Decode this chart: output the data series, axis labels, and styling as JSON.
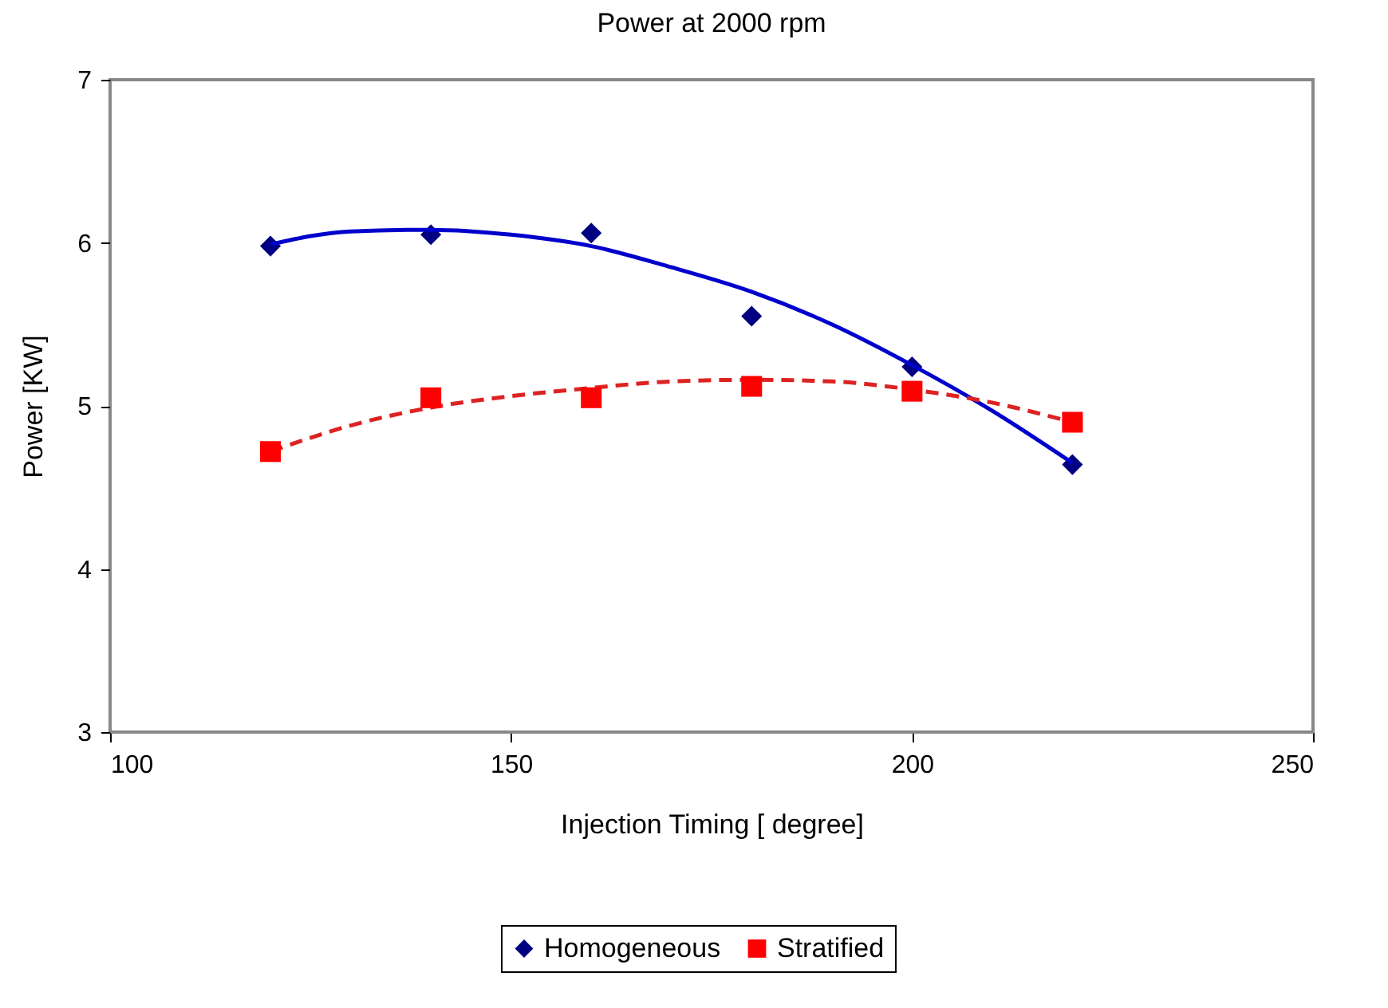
{
  "chart_data": {
    "type": "scatter",
    "title": "Power at 2000 rpm",
    "xlabel": "Injection Timing [ degree]",
    "ylabel": "Power [KW]",
    "xlim": [
      100,
      250
    ],
    "xticks": [
      100,
      150,
      200,
      250
    ],
    "ylim": [
      3,
      7
    ],
    "yticks": [
      3,
      4,
      5,
      6,
      7
    ],
    "grid": false,
    "legend": "bottom",
    "series": [
      {
        "name": "Homogeneous",
        "marker": "diamond",
        "color": "#000080",
        "x": [
          120,
          140,
          160,
          180,
          200,
          220
        ],
        "values": [
          5.98,
          6.05,
          6.06,
          5.55,
          5.24,
          4.64
        ]
      },
      {
        "name": "Stratified",
        "marker": "square",
        "color": "#ff0000",
        "x": [
          120,
          140,
          160,
          180,
          200,
          220
        ],
        "values": [
          4.72,
          5.05,
          5.05,
          5.12,
          5.09,
          4.9
        ]
      },
      {
        "type": "line",
        "line_style": "solid",
        "color": "#0000cc",
        "x": [
          120,
          130,
          140,
          150,
          160,
          170,
          180,
          190,
          200,
          210,
          220
        ],
        "values": [
          5.99,
          6.07,
          6.08,
          6.05,
          5.98,
          5.85,
          5.7,
          5.5,
          5.25,
          4.97,
          4.65
        ]
      },
      {
        "type": "line",
        "line_style": "dashed",
        "color": "#dd2222",
        "x": [
          120,
          130,
          140,
          150,
          160,
          170,
          180,
          190,
          200,
          210,
          220
        ],
        "values": [
          4.72,
          4.88,
          4.99,
          5.06,
          5.11,
          5.15,
          5.16,
          5.15,
          5.1,
          5.02,
          4.9
        ]
      }
    ]
  }
}
